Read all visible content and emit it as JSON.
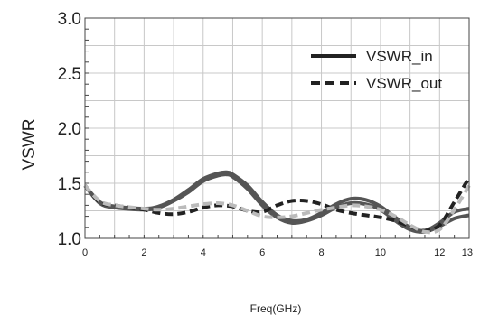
{
  "chart_data": {
    "type": "line",
    "title": "",
    "xlabel": "Freq(GHz)",
    "ylabel": "VSWR",
    "xlim": [
      0,
      13
    ],
    "ylim": [
      1.0,
      3.0
    ],
    "grid": true,
    "legend_position": "top-right",
    "x_ticks": [
      "0",
      "2",
      "4",
      "6",
      "8",
      "10",
      "12",
      "13"
    ],
    "y_ticks": [
      "1.0",
      "1.5",
      "2.0",
      "2.5",
      "3.0"
    ],
    "legend": [
      {
        "label": "VSWR_in",
        "style": "solid"
      },
      {
        "label": "VSWR_out",
        "style": "dashed"
      }
    ],
    "series": [
      {
        "group": "in",
        "color": "#555555",
        "style": "solid",
        "x": [
          0,
          0.5,
          1,
          2,
          2.5,
          3,
          3.5,
          4,
          4.5,
          4.8,
          5,
          5.5,
          6,
          6.5,
          7,
          7.5,
          8,
          8.5,
          9,
          9.5,
          10,
          10.5,
          11,
          11.5,
          12,
          12.5,
          13
        ],
        "values": [
          1.48,
          1.33,
          1.29,
          1.27,
          1.29,
          1.35,
          1.44,
          1.54,
          1.59,
          1.6,
          1.58,
          1.48,
          1.33,
          1.21,
          1.16,
          1.17,
          1.23,
          1.31,
          1.36,
          1.35,
          1.29,
          1.19,
          1.1,
          1.07,
          1.14,
          1.24,
          1.27
        ]
      },
      {
        "group": "in",
        "color": "#555555",
        "style": "solid",
        "x": [
          0,
          0.5,
          1,
          2,
          2.5,
          3,
          3.5,
          4,
          4.5,
          4.8,
          5,
          5.5,
          6,
          6.5,
          7,
          7.5,
          8,
          8.5,
          9,
          9.5,
          10,
          10.5,
          11,
          11.5,
          12,
          12.5,
          13
        ],
        "values": [
          1.48,
          1.32,
          1.28,
          1.26,
          1.28,
          1.34,
          1.42,
          1.52,
          1.57,
          1.58,
          1.56,
          1.45,
          1.3,
          1.19,
          1.14,
          1.16,
          1.21,
          1.28,
          1.32,
          1.31,
          1.26,
          1.16,
          1.08,
          1.06,
          1.11,
          1.18,
          1.21
        ]
      },
      {
        "group": "out",
        "color": "#222222",
        "style": "dashed",
        "x": [
          0,
          0.5,
          1,
          2,
          2.5,
          3,
          3.5,
          4,
          4.5,
          5,
          5.5,
          6,
          6.5,
          7,
          7.5,
          8,
          8.5,
          9,
          9.5,
          10,
          10.5,
          11,
          11.5,
          12,
          12.5,
          13
        ],
        "values": [
          1.48,
          1.33,
          1.3,
          1.26,
          1.23,
          1.22,
          1.24,
          1.28,
          1.3,
          1.29,
          1.25,
          1.24,
          1.3,
          1.34,
          1.34,
          1.31,
          1.26,
          1.23,
          1.21,
          1.19,
          1.16,
          1.11,
          1.07,
          1.12,
          1.33,
          1.55
        ]
      },
      {
        "group": "out",
        "color": "#bbbbbb",
        "style": "dashed",
        "x": [
          0,
          0.5,
          1,
          2,
          2.5,
          3,
          3.5,
          4,
          4.5,
          5,
          5.5,
          6,
          6.5,
          7,
          7.5,
          8,
          8.5,
          9,
          9.5,
          10,
          10.5,
          11,
          11.5,
          12,
          12.5,
          13
        ],
        "values": [
          1.48,
          1.34,
          1.3,
          1.27,
          1.26,
          1.27,
          1.29,
          1.31,
          1.32,
          1.3,
          1.25,
          1.2,
          1.19,
          1.2,
          1.23,
          1.26,
          1.28,
          1.3,
          1.29,
          1.26,
          1.2,
          1.12,
          1.06,
          1.08,
          1.26,
          1.48
        ]
      }
    ]
  }
}
